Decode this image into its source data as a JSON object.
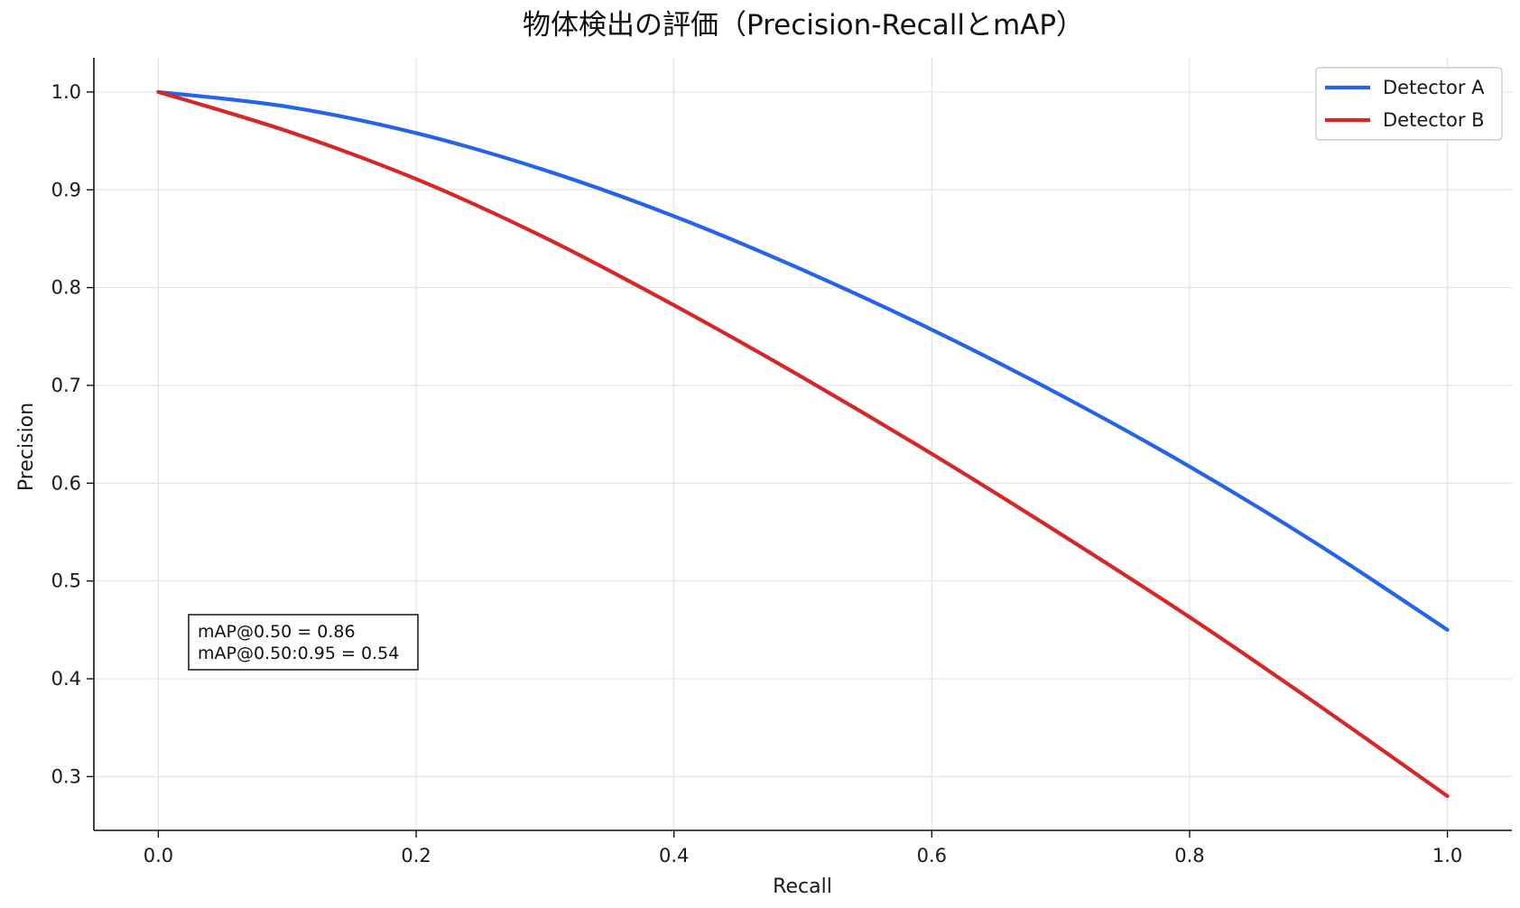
{
  "chart_data": {
    "type": "line",
    "title": "物体検出の評価（Precision-RecallとmAP）",
    "xlabel": "Recall",
    "ylabel": "Precision",
    "xlim": [
      -0.05,
      1.05
    ],
    "ylim": [
      0.245,
      1.035
    ],
    "xticks": [
      "0.0",
      "0.2",
      "0.4",
      "0.6",
      "0.8",
      "1.0"
    ],
    "yticks": [
      "0.3",
      "0.4",
      "0.5",
      "0.6",
      "0.7",
      "0.8",
      "0.9",
      "1.0"
    ],
    "grid": true,
    "legend_position": "top-right",
    "x": [
      0.0,
      0.1,
      0.2,
      0.3,
      0.4,
      0.5,
      0.6,
      0.7,
      0.8,
      0.9,
      1.0
    ],
    "series": [
      {
        "name": "Detector A",
        "color": "#2563eb",
        "values": [
          1.0,
          0.985,
          0.958,
          0.92,
          0.873,
          0.818,
          0.757,
          0.69,
          0.617,
          0.537,
          0.45
        ]
      },
      {
        "name": "Detector B",
        "color": "#d62728",
        "values": [
          1.0,
          0.96,
          0.911,
          0.851,
          0.782,
          0.708,
          0.63,
          0.548,
          0.463,
          0.373,
          0.28
        ]
      }
    ],
    "annotation": {
      "lines": [
        "mAP@0.50 = 0.86",
        "mAP@0.50:0.95 = 0.54"
      ]
    }
  }
}
